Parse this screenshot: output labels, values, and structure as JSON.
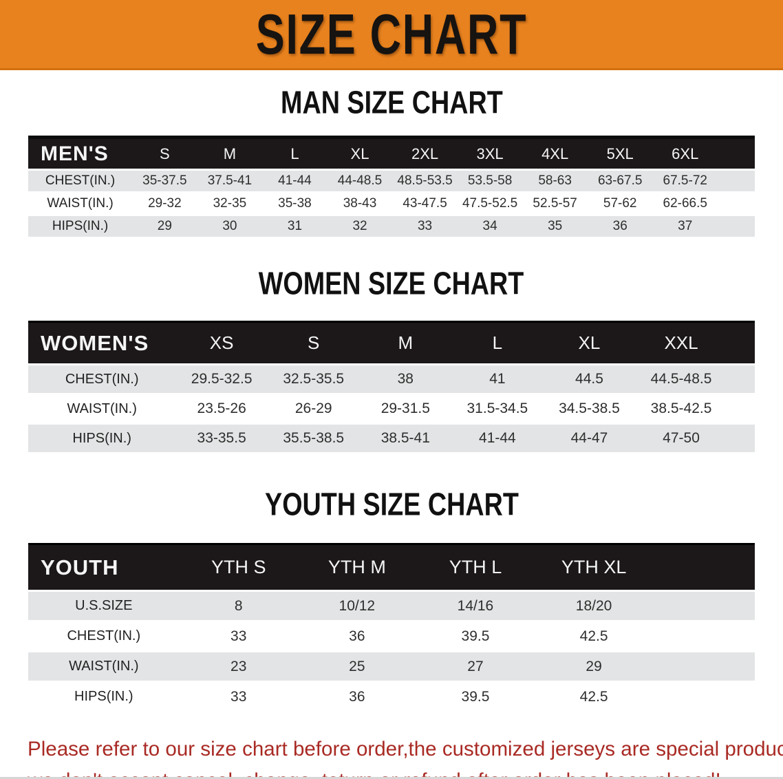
{
  "banner": {
    "title": "SIZE CHART"
  },
  "colors": {
    "banner_bg": "#E8821E",
    "table_header_bg": "#1C1819",
    "row_stripe": "#E2E4E5",
    "footer_text": "#A92A24"
  },
  "sections": [
    {
      "id": "men",
      "title": "MAN SIZE CHART",
      "table": {
        "label": "MEN'S",
        "columns": [
          "S",
          "M",
          "L",
          "XL",
          "2XL",
          "3XL",
          "4XL",
          "5XL",
          "6XL"
        ],
        "rows": [
          {
            "label": "CHEST(IN.)",
            "values": [
              "35-37.5",
              "37.5-41",
              "41-44",
              "44-48.5",
              "48.5-53.5",
              "53.5-58",
              "58-63",
              "63-67.5",
              "67.5-72"
            ]
          },
          {
            "label": "WAIST(IN.)",
            "values": [
              "29-32",
              "32-35",
              "35-38",
              "38-43",
              "43-47.5",
              "47.5-52.5",
              "52.5-57",
              "57-62",
              "62-66.5"
            ]
          },
          {
            "label": "HIPS(IN.)",
            "values": [
              "29",
              "30",
              "31",
              "32",
              "33",
              "34",
              "35",
              "36",
              "37"
            ]
          }
        ]
      }
    },
    {
      "id": "women",
      "title": "WOMEN SIZE CHART",
      "table": {
        "label": "WOMEN'S",
        "columns": [
          "XS",
          "S",
          "M",
          "L",
          "XL",
          "XXL"
        ],
        "rows": [
          {
            "label": "CHEST(IN.)",
            "values": [
              "29.5-32.5",
              "32.5-35.5",
              "38",
              "41",
              "44.5",
              "44.5-48.5"
            ]
          },
          {
            "label": "WAIST(IN.)",
            "values": [
              "23.5-26",
              "26-29",
              "29-31.5",
              "31.5-34.5",
              "34.5-38.5",
              "38.5-42.5"
            ]
          },
          {
            "label": "HIPS(IN.)",
            "values": [
              "33-35.5",
              "35.5-38.5",
              "38.5-41",
              "41-44",
              "44-47",
              "47-50"
            ]
          }
        ]
      }
    },
    {
      "id": "youth",
      "title": "YOUTH SIZE CHART",
      "table": {
        "label": "YOUTH",
        "columns": [
          "YTH S",
          "YTH M",
          "YTH L",
          "YTH XL"
        ],
        "rows": [
          {
            "label": "U.S.SIZE",
            "values": [
              "8",
              "10/12",
              "14/16",
              "18/20"
            ]
          },
          {
            "label": "CHEST(IN.)",
            "values": [
              "33",
              "36",
              "39.5",
              "42.5"
            ]
          },
          {
            "label": "WAIST(IN.)",
            "values": [
              "23",
              "25",
              "27",
              "29"
            ]
          },
          {
            "label": "HIPS(IN.)",
            "values": [
              "33",
              "36",
              "39.5",
              "42.5"
            ]
          }
        ]
      }
    }
  ],
  "footer": {
    "line1": "Please refer to our size chart before order,the customized jerseys are special products,",
    "line2": "we don't accept cancel, change, teturn or refund after order has been placed!"
  }
}
